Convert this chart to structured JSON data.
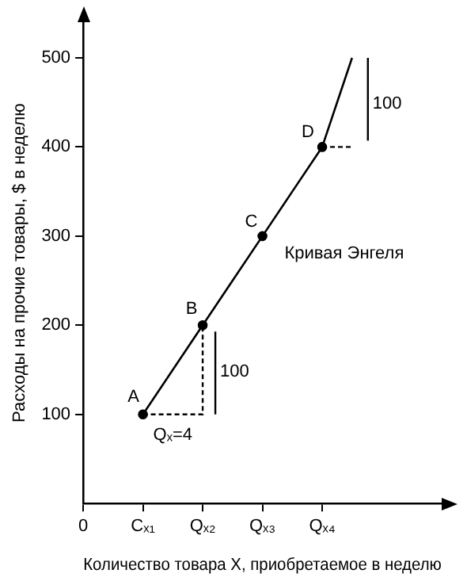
{
  "chart_data": {
    "type": "line",
    "xlabel": "Количество товара X, приобретаемое в неделю",
    "ylabel": "Расходы на прочие товары, $ в неделю",
    "categories": [
      "0",
      null,
      "Cₓ₁",
      null,
      "Qₓ₂",
      null,
      "Qₓ₃",
      null,
      "Qₓ₄",
      null,
      null,
      null,
      null
    ],
    "ylim": [
      0,
      540
    ],
    "yticks": [
      100,
      200,
      300,
      400,
      500
    ],
    "grid": false,
    "legend": false,
    "series": [
      {
        "color": "#000000",
        "marker": "none",
        "line_style": "solid",
        "values": [
          null,
          null,
          100,
          150,
          200,
          250,
          300,
          350,
          400,
          500,
          null,
          null,
          null
        ]
      },
      {
        "type": "scatter",
        "color": "#000000",
        "marker": "circle",
        "values": [
          null,
          null,
          100,
          null,
          200,
          null,
          300,
          null,
          400,
          null,
          null,
          null,
          null
        ]
      }
    ],
    "annotations": [
      {
        "text": "A",
        "x": "Cₓ₁",
        "y": 100
      },
      {
        "text": "B",
        "x": "Qₓ₂",
        "y": 200
      },
      {
        "text": "C",
        "x": "Qₓ₃",
        "y": 300
      },
      {
        "text": "D",
        "x": "Qₓ₄",
        "y": 400
      },
      "Кривая Энгеля",
      {
        "text": "Qₓ=4",
        "x": "Cₓ₁",
        "y": 100
      },
      "100",
      "100"
    ]
  }
}
